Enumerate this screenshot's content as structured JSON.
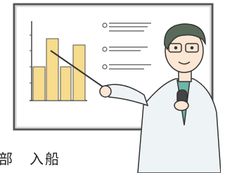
{
  "caption": "部　入船"
}
